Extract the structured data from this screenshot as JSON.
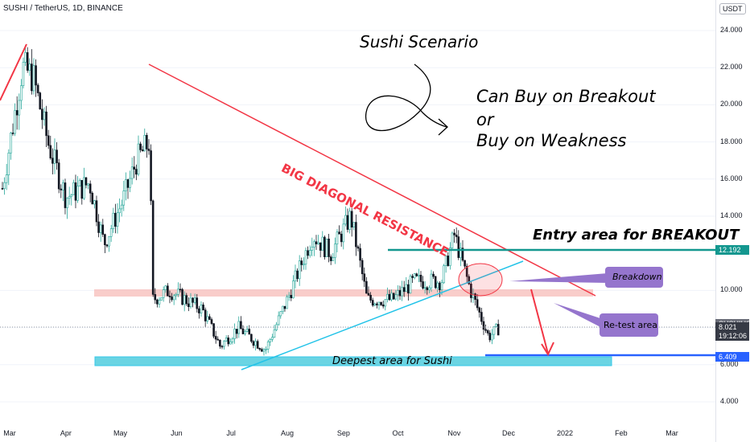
{
  "header": {
    "symbol": "SUSHI / TetherUS, 1D, BINANCE",
    "currency": "USDT"
  },
  "colors": {
    "up": "#26a69a",
    "down": "#131722",
    "resistance": "#f23645",
    "support": "#22c3e8",
    "entry": "#13978f",
    "deep": "#2962ff",
    "zone_pink": "#f7b8b4",
    "callout": "#9575cd"
  },
  "price_axis": {
    "ticks": [
      "24.000",
      "22.000",
      "20.000",
      "18.000",
      "16.000",
      "14.000",
      "10.000",
      "8.000",
      "6.000",
      "4.000"
    ],
    "badges": [
      {
        "label": "12.192",
        "bg": "#13978f",
        "price": 12.192
      },
      {
        "label": "SUSHIUSDT",
        "bg": "#6a6d78",
        "price": 8.2
      },
      {
        "label": "8.021",
        "bg": "#363a45",
        "price": 8.021
      },
      {
        "label": "19:12:06",
        "bg": "#363a45",
        "price": 7.55
      },
      {
        "label": "6.409",
        "bg": "#2962ff",
        "price": 6.409
      }
    ]
  },
  "time_axis": [
    "Mar",
    "Apr",
    "May",
    "Jun",
    "Jul",
    "Aug",
    "Sep",
    "Oct",
    "Nov",
    "Dec",
    "2022",
    "Feb",
    "Mar"
  ],
  "annotations": {
    "scenario_title": "Sushi Scenario",
    "line1": "Can Buy on Breakout",
    "line2": "or",
    "line3": "Buy on Weakness",
    "resistance_label": "BIG DIAGONAL RESISTANCE",
    "entry_label": "Entry area for BREAKOUT",
    "breakdown": "Breakdown",
    "retest": "Re-test area",
    "deepest": "Deepest area for Sushi"
  },
  "chart_data": {
    "type": "candlestick",
    "title": "SUSHI / TetherUS, 1D, BINANCE",
    "x_range": [
      "2021-02",
      "2022-03"
    ],
    "ylim": [
      3.5,
      24.5
    ],
    "close_path": [
      {
        "date": "2021-02-25",
        "price": 15.5
      },
      {
        "date": "2021-03-08",
        "price": 22.0
      },
      {
        "date": "2021-03-14",
        "price": 21.5
      },
      {
        "date": "2021-03-22",
        "price": 18.0
      },
      {
        "date": "2021-04-01",
        "price": 15.0
      },
      {
        "date": "2021-04-14",
        "price": 15.8
      },
      {
        "date": "2021-04-22",
        "price": 12.5
      },
      {
        "date": "2021-05-03",
        "price": 15.0
      },
      {
        "date": "2021-05-10",
        "price": 17.0
      },
      {
        "date": "2021-05-17",
        "price": 18.0
      },
      {
        "date": "2021-05-19",
        "price": 9.5
      },
      {
        "date": "2021-05-28",
        "price": 10.0
      },
      {
        "date": "2021-06-15",
        "price": 9.0
      },
      {
        "date": "2021-06-25",
        "price": 7.0
      },
      {
        "date": "2021-07-05",
        "price": 8.0
      },
      {
        "date": "2021-07-20",
        "price": 6.8
      },
      {
        "date": "2021-08-01",
        "price": 9.5
      },
      {
        "date": "2021-08-15",
        "price": 13.0
      },
      {
        "date": "2021-08-25",
        "price": 12.0
      },
      {
        "date": "2021-09-05",
        "price": 14.0
      },
      {
        "date": "2021-09-14",
        "price": 9.5
      },
      {
        "date": "2021-09-28",
        "price": 9.5
      },
      {
        "date": "2021-10-10",
        "price": 10.5
      },
      {
        "date": "2021-10-25",
        "price": 10.5
      },
      {
        "date": "2021-11-01",
        "price": 13.0
      },
      {
        "date": "2021-11-10",
        "price": 10.0
      },
      {
        "date": "2021-11-20",
        "price": 7.5
      },
      {
        "date": "2021-11-26",
        "price": 8.0
      }
    ],
    "levels": {
      "entry_breakout": 12.192,
      "current": 8.021,
      "deepest": 6.409
    },
    "zones": {
      "pink_support": [
        9.7,
        10.1
      ],
      "deepest_zone": [
        6.2,
        6.6
      ]
    }
  }
}
